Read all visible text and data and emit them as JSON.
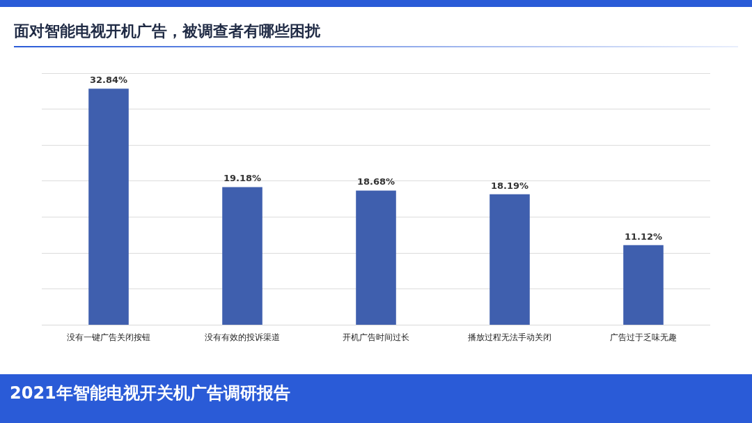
{
  "chart_data": {
    "type": "bar",
    "title": "面对智能电视开机广告，被调查者有哪些困扰",
    "categories": [
      "没有一键广告关闭按钮",
      "没有有效的投诉渠道",
      "开机广告时间过长",
      "播放过程无法手动关闭",
      "广告过于乏味无趣"
    ],
    "values": [
      32.84,
      19.18,
      18.68,
      18.19,
      11.12
    ],
    "color": "#3f5fae",
    "value_labels": [
      "32.84%",
      "19.18%",
      "18.68%",
      "18.19%",
      "11.12%"
    ],
    "tick_labels": "x",
    "grid": "y",
    "annotations": [
      "2021年智能电视开关机广告调研报告"
    ]
  }
}
